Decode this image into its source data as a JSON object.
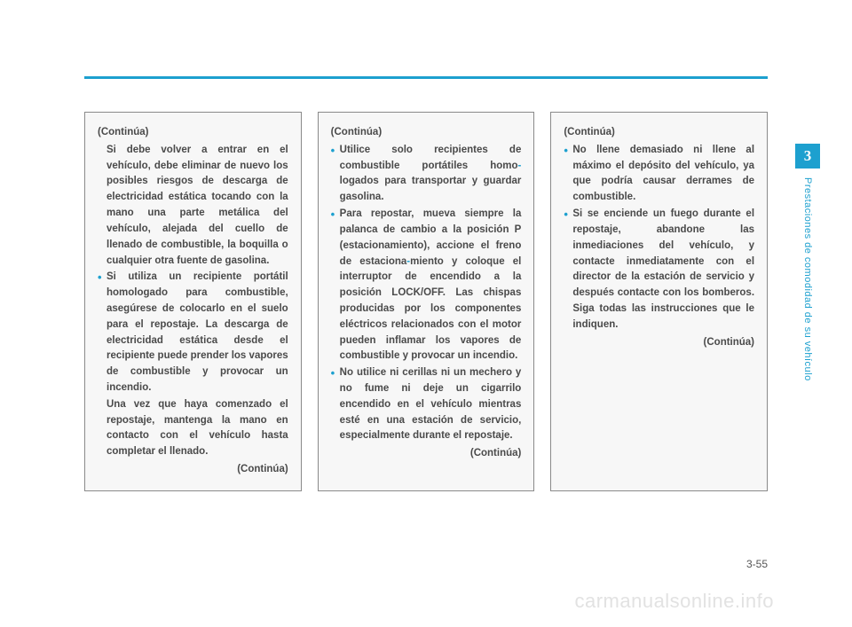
{
  "chapter": {
    "number": "3",
    "title": "Prestaciones de comodidad de su vehículo"
  },
  "pageNumber": "3-55",
  "watermark": "carmanualsonline.info",
  "columns": [
    {
      "continues_top": "(Continúa)",
      "blocks": [
        {
          "type": "para",
          "text": "Si debe volver a entrar en el vehículo, debe eliminar de nuevo los posibles riesgos de descarga de electricidad estática tocando con la mano una parte metálica del vehículo, alejada del cuello de llenado de combustible, la boquilla o cualquier otra fuente de gasolina."
        },
        {
          "type": "bullet",
          "text": "Si utiliza un recipiente portátil homologado para combustible, asegúrese de colocarlo en el suelo para el repostaje. La descarga de electricidad estática desde el recipiente puede prender los vapores de combustible y provocar un incendio."
        },
        {
          "type": "para",
          "text": "Una vez que haya comenzado el repostaje, mantenga la mano en contacto con el vehículo hasta completar el llenado."
        }
      ],
      "continues_bottom": "(Continúa)"
    },
    {
      "continues_top": "(Continúa)",
      "blocks": [
        {
          "type": "bullet",
          "text_pre": "Utilice solo recipientes de combustible portátiles homo",
          "text_post": "logados para transportar y guardar gasolina."
        },
        {
          "type": "bullet",
          "text_pre": "Para repostar, mueva siempre la palanca de cambio a la posición P (estacionamiento), accione el freno de estaciona",
          "text_post": "miento y coloque el interruptor de encendido a la posición LOCK/OFF. Las chispas producidas por los componentes eléctricos relacionados con el motor pueden inflamar los vapores de combustible y provocar un incendio."
        },
        {
          "type": "bullet",
          "text": "No utilice ni cerillas ni un mechero y no fume ni deje un cigarrilo encendido en el vehículo mientras esté en una estación de servicio, especialmente durante el repostaje."
        }
      ],
      "continues_bottom": "(Continúa)"
    },
    {
      "continues_top": "(Continúa)",
      "blocks": [
        {
          "type": "bullet",
          "text": "No llene demasiado ni llene al máximo el depósito del vehículo, ya que podría causar derrames de combustible."
        },
        {
          "type": "bullet",
          "text": "Si se enciende un fuego durante el repostaje, abandone las inmediaciones del vehículo, y contacte inmediatamente con el director de la estación de servicio y después contacte con los bomberos. Siga todas las instrucciones que le indiquen."
        }
      ],
      "continues_bottom": "(Continúa)"
    }
  ]
}
